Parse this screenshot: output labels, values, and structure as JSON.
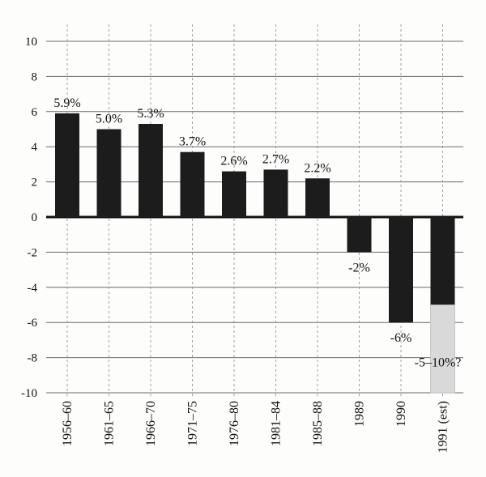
{
  "chart_data": {
    "type": "bar",
    "title": "",
    "xlabel": "",
    "ylabel": "",
    "ylim": [
      -10,
      10
    ],
    "yticks": [
      10,
      8,
      6,
      4,
      2,
      0,
      -2,
      -4,
      -6,
      -8,
      -10
    ],
    "grid": true,
    "categories": [
      "1956–60",
      "1961–65",
      "1966–70",
      "1971–75",
      "1976–80",
      "1981–84",
      "1985–88",
      "1989",
      "1990",
      "1991 (est)"
    ],
    "values": [
      5.9,
      5.0,
      5.3,
      3.7,
      2.6,
      2.7,
      2.2,
      -2,
      -6,
      -5
    ],
    "data_labels": [
      "5.9%",
      "5.0%",
      "5.3%",
      "3.7%",
      "2.6%",
      "2.7%",
      "2.2%",
      "-2%",
      "-6%",
      "-5–10%?"
    ],
    "estimate_range": {
      "category": "1991 (est)",
      "from": -5,
      "to": -10
    },
    "colors": {
      "bar": "#1c1c1c",
      "estimate": "#d9d9d9",
      "grid": "#6a6a6a"
    }
  }
}
